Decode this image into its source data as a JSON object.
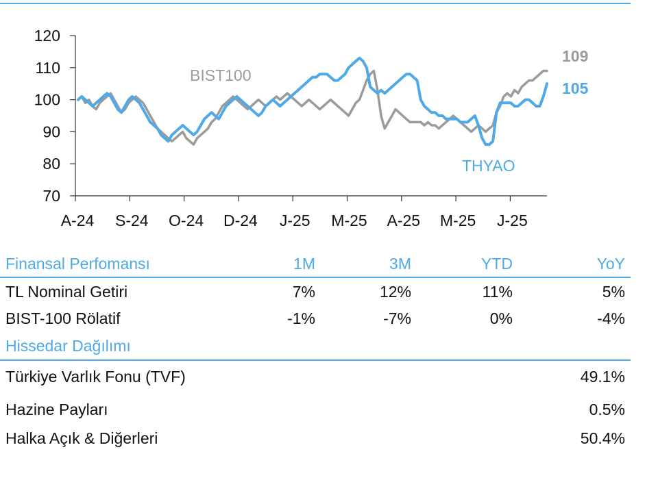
{
  "chart_data": {
    "type": "line",
    "ylim": [
      70,
      120
    ],
    "yticks": [
      "70",
      "80",
      "90",
      "100",
      "110",
      "120"
    ],
    "xtick_labels": [
      "A-24",
      "S-24",
      "O-24",
      "D-24",
      "J-25",
      "M-25",
      "A-25",
      "M-25",
      "J-25"
    ],
    "series": [
      {
        "name": "BIST100",
        "color": "#9b9b9b",
        "end_label": "109",
        "values": [
          100,
          101,
          99,
          100,
          98,
          97,
          99,
          100,
          101,
          102,
          100,
          98,
          96,
          97,
          99,
          100,
          101,
          100,
          99,
          97,
          95,
          93,
          91,
          90,
          89,
          88,
          87,
          88,
          89,
          90,
          88,
          87,
          86,
          88,
          89,
          90,
          91,
          93,
          94,
          96,
          98,
          99,
          100,
          101,
          100,
          99,
          98,
          97,
          98,
          99,
          100,
          99,
          98,
          99,
          100,
          101,
          100,
          101,
          102,
          101,
          100,
          99,
          98,
          99,
          100,
          99,
          98,
          97,
          98,
          99,
          100,
          99,
          98,
          97,
          96,
          95,
          97,
          99,
          100,
          103,
          106,
          108,
          109,
          103,
          95,
          91,
          93,
          95,
          97,
          96,
          95,
          94,
          93,
          93,
          93,
          93,
          92,
          93,
          92,
          92,
          91,
          92,
          93,
          94,
          95,
          94,
          93,
          92,
          91,
          90,
          91,
          92,
          91,
          90,
          91,
          92,
          96,
          98,
          101,
          102,
          101,
          103,
          102,
          104,
          105,
          106,
          106,
          107,
          108,
          109,
          109
        ]
      },
      {
        "name": "THYAO",
        "color": "#4ea9e6",
        "end_label": "105",
        "values": [
          100,
          101,
          100,
          99,
          98,
          99,
          100,
          101,
          102,
          101,
          99,
          97,
          96,
          98,
          100,
          101,
          100,
          99,
          97,
          95,
          93,
          92,
          91,
          89,
          88,
          87,
          89,
          90,
          91,
          92,
          91,
          90,
          89,
          90,
          92,
          94,
          95,
          96,
          95,
          94,
          96,
          98,
          99,
          100,
          101,
          100,
          99,
          98,
          97,
          96,
          95,
          96,
          98,
          99,
          100,
          99,
          98,
          99,
          100,
          101,
          102,
          103,
          104,
          105,
          106,
          107,
          107,
          108,
          108,
          108,
          107,
          106,
          106,
          107,
          108,
          110,
          111,
          112,
          113,
          112,
          110,
          104,
          103,
          102,
          103,
          102,
          103,
          104,
          105,
          106,
          107,
          108,
          108,
          107,
          106,
          100,
          98,
          97,
          96,
          96,
          95,
          95,
          94,
          94,
          94,
          94,
          93,
          93,
          93,
          94,
          95,
          92,
          88,
          86,
          86,
          87,
          96,
          99,
          99,
          99,
          99,
          98,
          98,
          99,
          100,
          100,
          99,
          98,
          98,
          101,
          105
        ]
      }
    ]
  },
  "performance": {
    "header": {
      "title": "Finansal Perfomansı",
      "c1": "1M",
      "c2": "3M",
      "c3": "YTD",
      "c4": "YoY"
    },
    "rows": [
      {
        "label": "TL Nominal Getiri",
        "c1": "7%",
        "c2": "12%",
        "c3": "11%",
        "c4": "5%"
      },
      {
        "label": "BIST-100 Rölatif",
        "c1": "-1%",
        "c2": "-7%",
        "c3": "0%",
        "c4": "-4%"
      }
    ]
  },
  "shareholders": {
    "title": "Hissedar Dağılımı",
    "rows": [
      {
        "label": "Türkiye Varlık Fonu (TVF)",
        "value": "49.1%"
      },
      {
        "label": "Hazine Payları",
        "value": "0.5%"
      },
      {
        "label": "Halka Açık & Diğerleri",
        "value": "50.4%"
      }
    ]
  }
}
